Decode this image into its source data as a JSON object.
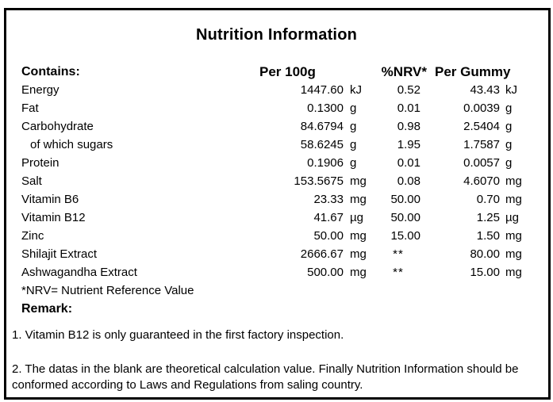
{
  "title": "Nutrition Information",
  "colors": {
    "text": "#000000",
    "background": "#ffffff",
    "border": "#000000"
  },
  "table": {
    "headers": {
      "contains": "Contains:",
      "per100g": "Per 100g",
      "nrv": "%NRV*",
      "per_gummy": "Per Gummy"
    },
    "rows": [
      {
        "name": "Energy",
        "indent": false,
        "per100g": "1447.60",
        "unit100g": "kJ",
        "nrv": "0.52",
        "per_gummy": "43.43",
        "unit_gummy": "kJ"
      },
      {
        "name": "Fat",
        "indent": false,
        "per100g": "0.1300",
        "unit100g": "g",
        "nrv": "0.01",
        "per_gummy": "0.0039",
        "unit_gummy": "g"
      },
      {
        "name": "Carbohydrate",
        "indent": false,
        "per100g": "84.6794",
        "unit100g": "g",
        "nrv": "0.98",
        "per_gummy": "2.5404",
        "unit_gummy": "g"
      },
      {
        "name": "of which sugars",
        "indent": true,
        "per100g": "58.6245",
        "unit100g": "g",
        "nrv": "1.95",
        "per_gummy": "1.7587",
        "unit_gummy": "g"
      },
      {
        "name": "Protein",
        "indent": false,
        "per100g": "0.1906",
        "unit100g": "g",
        "nrv": "0.01",
        "per_gummy": "0.0057",
        "unit_gummy": "g"
      },
      {
        "name": "Salt",
        "indent": false,
        "per100g": "153.5675",
        "unit100g": "mg",
        "nrv": "0.08",
        "per_gummy": "4.6070",
        "unit_gummy": "mg"
      },
      {
        "name": "Vitamin B6",
        "indent": false,
        "per100g": "23.33",
        "unit100g": "mg",
        "nrv": "50.00",
        "per_gummy": "0.70",
        "unit_gummy": "mg"
      },
      {
        "name": "Vitamin B12",
        "indent": false,
        "per100g": "41.67",
        "unit100g": "µg",
        "nrv": "50.00",
        "per_gummy": "1.25",
        "unit_gummy": "µg"
      },
      {
        "name": "Zinc",
        "indent": false,
        "per100g": "50.00",
        "unit100g": "mg",
        "nrv": "15.00",
        "per_gummy": "1.50",
        "unit_gummy": "mg"
      },
      {
        "name": "Shilajit Extract",
        "indent": false,
        "per100g": "2666.67",
        "unit100g": "mg",
        "nrv": "**",
        "per_gummy": "80.00",
        "unit_gummy": "mg"
      },
      {
        "name": "Ashwagandha Extract",
        "indent": false,
        "per100g": "500.00",
        "unit100g": "mg",
        "nrv": "**",
        "per_gummy": "15.00",
        "unit_gummy": "mg"
      }
    ],
    "footnote": "*NRV= Nutrient Reference Value"
  },
  "remarks": {
    "label": "Remark:",
    "items": [
      "1. Vitamin B12 is only guaranteed in the first factory inspection.",
      "2. The datas in the blank are theoretical calculation value. Finally Nutrition Information should be conformed according to Laws and Regulations from saling country."
    ]
  }
}
